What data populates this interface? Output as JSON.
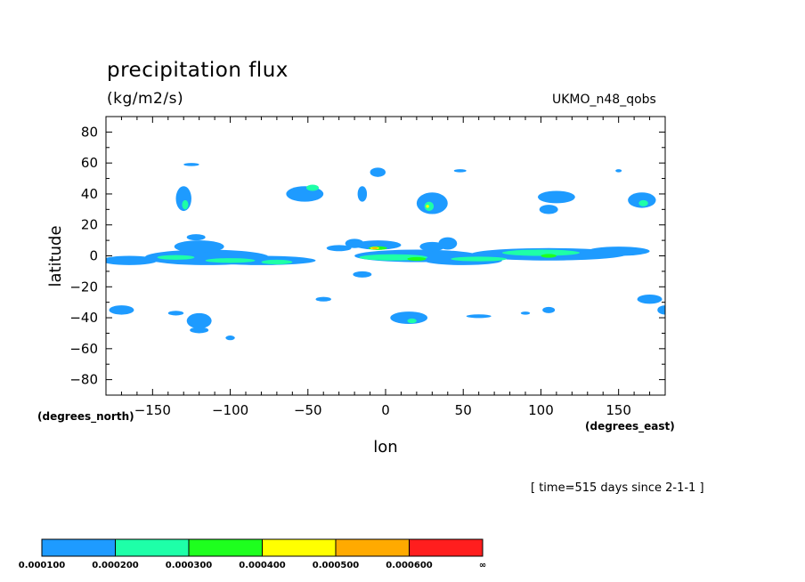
{
  "chart_data": {
    "type": "contour",
    "title": "precipitation flux",
    "units": "(kg/m2/s)",
    "source": "UKMO_n48_qobs",
    "time_label": "[ time=515 days since 2-1-1 ]",
    "xlabel": "lon",
    "ylabel": "latitude",
    "x_unit_label": "(degrees_east)",
    "y_unit_label": "(degrees_north)",
    "xlim": [
      -180,
      180
    ],
    "ylim": [
      -90,
      90
    ],
    "x_ticks": [
      -150,
      -100,
      -50,
      0,
      50,
      100,
      150
    ],
    "y_ticks": [
      -80,
      -60,
      -40,
      -20,
      0,
      20,
      40,
      60,
      80
    ],
    "levels": [
      {
        "label": "0.000100",
        "color": "#1e9bff"
      },
      {
        "label": "0.000200",
        "color": "#1effa8"
      },
      {
        "label": "0.000300",
        "color": "#1eff1e"
      },
      {
        "label": "0.000400",
        "color": "#ffff00"
      },
      {
        "label": "0.000500",
        "color": "#ffaa00"
      },
      {
        "label": "0.000600",
        "color": "#ff1e1e"
      },
      {
        "label": "∞",
        "color": null
      }
    ],
    "regions": [
      {
        "level": 0,
        "lon": -165,
        "lat": -3,
        "rx": 18,
        "ry": 3
      },
      {
        "level": 0,
        "lon": -115,
        "lat": -1,
        "rx": 40,
        "ry": 5
      },
      {
        "level": 0,
        "lon": -80,
        "lat": -3,
        "rx": 35,
        "ry": 3
      },
      {
        "level": 0,
        "lon": -120,
        "lat": 6,
        "rx": 16,
        "ry": 4
      },
      {
        "level": 0,
        "lon": -122,
        "lat": 12,
        "rx": 6,
        "ry": 2
      },
      {
        "level": 1,
        "lon": -135,
        "lat": -1,
        "rx": 12,
        "ry": 1.5
      },
      {
        "level": 1,
        "lon": -100,
        "lat": -3,
        "rx": 16,
        "ry": 1.5
      },
      {
        "level": 1,
        "lon": -70,
        "lat": -4,
        "rx": 10,
        "ry": 1.5
      },
      {
        "level": 0,
        "lon": 20,
        "lat": 0,
        "rx": 40,
        "ry": 4
      },
      {
        "level": 0,
        "lon": 50,
        "lat": -3,
        "rx": 25,
        "ry": 3
      },
      {
        "level": 0,
        "lon": 105,
        "lat": 1,
        "rx": 50,
        "ry": 4
      },
      {
        "level": 0,
        "lon": 150,
        "lat": 3,
        "rx": 20,
        "ry": 3
      },
      {
        "level": 0,
        "lon": -5,
        "lat": 7,
        "rx": 15,
        "ry": 3
      },
      {
        "level": 0,
        "lon": 30,
        "lat": 6,
        "rx": 8,
        "ry": 3
      },
      {
        "level": 1,
        "lon": 5,
        "lat": -1,
        "rx": 22,
        "ry": 2
      },
      {
        "level": 1,
        "lon": 60,
        "lat": -2,
        "rx": 18,
        "ry": 1.5
      },
      {
        "level": 1,
        "lon": 100,
        "lat": 2,
        "rx": 25,
        "ry": 2
      },
      {
        "level": 2,
        "lon": 20,
        "lat": -2,
        "rx": 6,
        "ry": 1.2
      },
      {
        "level": 2,
        "lon": 105,
        "lat": 0,
        "rx": 5,
        "ry": 1.2
      },
      {
        "level": 2,
        "lon": -5,
        "lat": 5,
        "rx": 6,
        "ry": 1.2
      },
      {
        "level": 3,
        "lon": -7,
        "lat": 5,
        "rx": 3,
        "ry": 0.8
      },
      {
        "level": 4,
        "lon": -7,
        "lat": 5,
        "rx": 2,
        "ry": 0.5
      },
      {
        "level": 0,
        "lon": -130,
        "lat": 37,
        "rx": 5,
        "ry": 8
      },
      {
        "level": 1,
        "lon": -129,
        "lat": 33,
        "rx": 2,
        "ry": 3
      },
      {
        "level": 0,
        "lon": -52,
        "lat": 40,
        "rx": 12,
        "ry": 5
      },
      {
        "level": 1,
        "lon": -47,
        "lat": 44,
        "rx": 4,
        "ry": 2
      },
      {
        "level": 0,
        "lon": -15,
        "lat": 40,
        "rx": 3,
        "ry": 5
      },
      {
        "level": 0,
        "lon": -5,
        "lat": 54,
        "rx": 5,
        "ry": 3
      },
      {
        "level": 0,
        "lon": 30,
        "lat": 34,
        "rx": 10,
        "ry": 7
      },
      {
        "level": 1,
        "lon": 28,
        "lat": 32,
        "rx": 3,
        "ry": 3
      },
      {
        "level": 3,
        "lon": 27,
        "lat": 32,
        "rx": 1,
        "ry": 1
      },
      {
        "level": 0,
        "lon": 110,
        "lat": 38,
        "rx": 12,
        "ry": 4
      },
      {
        "level": 0,
        "lon": 105,
        "lat": 30,
        "rx": 6,
        "ry": 3
      },
      {
        "level": 0,
        "lon": 165,
        "lat": 36,
        "rx": 9,
        "ry": 5
      },
      {
        "level": 1,
        "lon": 166,
        "lat": 34,
        "rx": 3,
        "ry": 2
      },
      {
        "level": 0,
        "lon": -120,
        "lat": -42,
        "rx": 8,
        "ry": 5
      },
      {
        "level": 0,
        "lon": -120,
        "lat": -48,
        "rx": 6,
        "ry": 2
      },
      {
        "level": 0,
        "lon": 15,
        "lat": -40,
        "rx": 12,
        "ry": 4
      },
      {
        "level": 1,
        "lon": 17,
        "lat": -42,
        "rx": 3,
        "ry": 1.5
      },
      {
        "level": 0,
        "lon": 170,
        "lat": -28,
        "rx": 8,
        "ry": 3
      },
      {
        "level": 0,
        "lon": 180,
        "lat": -35,
        "rx": 5,
        "ry": 3
      },
      {
        "level": 0,
        "lon": 105,
        "lat": -35,
        "rx": 4,
        "ry": 2
      },
      {
        "level": 0,
        "lon": 60,
        "lat": -39,
        "rx": 8,
        "ry": 1.2
      },
      {
        "level": 0,
        "lon": 90,
        "lat": -37,
        "rx": 3,
        "ry": 1
      },
      {
        "level": 0,
        "lon": -135,
        "lat": -37,
        "rx": 5,
        "ry": 1.5
      },
      {
        "level": 0,
        "lon": -170,
        "lat": -35,
        "rx": 8,
        "ry": 3
      },
      {
        "level": 0,
        "lon": -100,
        "lat": -53,
        "rx": 3,
        "ry": 1.5
      },
      {
        "level": 0,
        "lon": -40,
        "lat": -28,
        "rx": 5,
        "ry": 1.5
      },
      {
        "level": 0,
        "lon": -125,
        "lat": 59,
        "rx": 5,
        "ry": 1
      },
      {
        "level": 0,
        "lon": 48,
        "lat": 55,
        "rx": 4,
        "ry": 1
      },
      {
        "level": 0,
        "lon": 150,
        "lat": 55,
        "rx": 2,
        "ry": 1
      },
      {
        "level": 0,
        "lon": -30,
        "lat": 5,
        "rx": 8,
        "ry": 2
      },
      {
        "level": 0,
        "lon": -20,
        "lat": 8,
        "rx": 6,
        "ry": 3
      },
      {
        "level": 0,
        "lon": -15,
        "lat": -12,
        "rx": 6,
        "ry": 2
      },
      {
        "level": 0,
        "lon": 40,
        "lat": 8,
        "rx": 6,
        "ry": 4
      }
    ]
  }
}
